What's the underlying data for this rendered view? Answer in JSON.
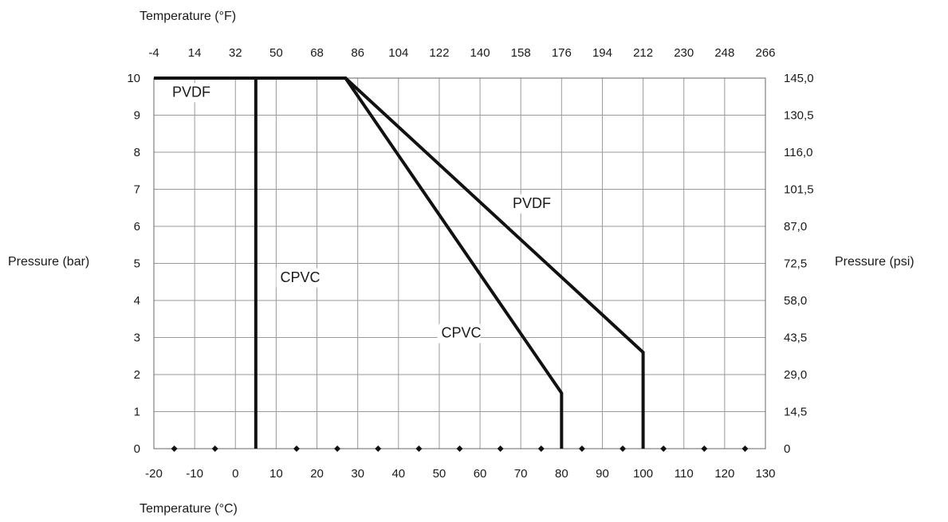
{
  "chart_data": {
    "type": "line",
    "xlabel_top": "Temperature (°F)",
    "xlabel_bottom": "Temperature (°C)",
    "ylabel_left": "Pressure (bar)",
    "ylabel_right": "Pressure (psi)",
    "xlim": [
      -20,
      130
    ],
    "ylim": [
      0,
      10
    ],
    "grid": true,
    "x_ticks_c": [
      -20,
      -10,
      0,
      10,
      20,
      30,
      40,
      50,
      60,
      70,
      80,
      90,
      100,
      110,
      120,
      130
    ],
    "x_tick_labels_c": [
      "-20",
      "-10",
      "0",
      "10",
      "20",
      "30",
      "40",
      "50",
      "60",
      "70",
      "80",
      "90",
      "100",
      "110",
      "120",
      "130"
    ],
    "x_tick_labels_f": [
      "-4",
      "14",
      "32",
      "50",
      "68",
      "86",
      "104",
      "122",
      "140",
      "158",
      "176",
      "194",
      "212",
      "230",
      "248",
      "266"
    ],
    "y_ticks": [
      0,
      1,
      2,
      3,
      4,
      5,
      6,
      7,
      8,
      9,
      10
    ],
    "y_tick_labels_bar": [
      "0",
      "1",
      "2",
      "3",
      "4",
      "5",
      "6",
      "7",
      "8",
      "9",
      "10"
    ],
    "y_tick_labels_psi": [
      "0",
      "14,5",
      "29,0",
      "43,5",
      "58,0",
      "72,5",
      "87,0",
      "101,5",
      "116,0",
      "130,5",
      "145,0"
    ],
    "marker_points_c": [
      -15,
      -5,
      15,
      25,
      35,
      45,
      55,
      65,
      75,
      85,
      95,
      105,
      115,
      125
    ],
    "series": [
      {
        "name": "PVDF",
        "x": [
          -20,
          27,
          100,
          100
        ],
        "y": [
          10,
          10,
          2.6,
          0
        ],
        "lower_limit_x": -20
      },
      {
        "name": "CPVC",
        "x": [
          5,
          5,
          27,
          80,
          80
        ],
        "y": [
          0,
          10,
          10,
          1.5,
          0
        ],
        "lower_limit_x": 5
      }
    ],
    "annotations": [
      {
        "text": "PVDF",
        "x": -15.5,
        "y": 9.5
      },
      {
        "text": "PVDF",
        "x": 68,
        "y": 6.5
      },
      {
        "text": "CPVC",
        "x": 11,
        "y": 4.5
      },
      {
        "text": "CPVC",
        "x": 50.5,
        "y": 3
      }
    ]
  }
}
